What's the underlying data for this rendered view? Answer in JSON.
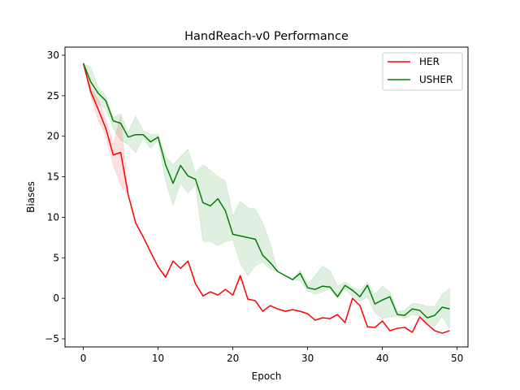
{
  "chart_data": {
    "type": "line",
    "title": "HandReach-v0 Performance",
    "xlabel": "Epoch",
    "ylabel": "Biases",
    "xlim": [
      -2.45,
      51.45
    ],
    "ylim": [
      -6,
      31
    ],
    "xticks": [
      0,
      10,
      20,
      30,
      40,
      50
    ],
    "yticks": [
      -5,
      0,
      5,
      10,
      15,
      20,
      25,
      30
    ],
    "grid": false,
    "legend_position": "top-right",
    "series": [
      {
        "name": "HER",
        "color": "#ff0000",
        "x": [
          0,
          1,
          2,
          3,
          4,
          5,
          6,
          7,
          8,
          9,
          10,
          11,
          12,
          13,
          14,
          15,
          16,
          17,
          18,
          19,
          20,
          21,
          22,
          23,
          24,
          25,
          26,
          27,
          28,
          29,
          30,
          31,
          32,
          33,
          34,
          35,
          36,
          37,
          38,
          39,
          40,
          41,
          42,
          43,
          44,
          45,
          46,
          47,
          48,
          49
        ],
        "values": [
          29.0,
          25.5,
          23.3,
          21.0,
          17.7,
          18.0,
          12.8,
          9.3,
          7.6,
          5.7,
          3.9,
          2.6,
          4.6,
          3.7,
          4.6,
          1.8,
          0.3,
          0.8,
          0.4,
          1.1,
          0.4,
          2.8,
          -0.1,
          -0.3,
          -1.6,
          -0.9,
          -1.3,
          -1.6,
          -1.4,
          -1.6,
          -1.9,
          -2.7,
          -2.4,
          -2.5,
          -2.0,
          -3.0,
          0.0,
          -0.9,
          -3.5,
          -3.6,
          -2.8,
          -4.0,
          -3.7,
          -3.6,
          -4.2,
          -2.3,
          -3.2,
          -4.0,
          -4.3,
          -4.0
        ],
        "lower": [
          29.0,
          25.0,
          22.0,
          20.0,
          16.5,
          14.0,
          12.8,
          9.3,
          7.6,
          5.7,
          3.9,
          2.6,
          4.6,
          3.7,
          4.6,
          1.8,
          0.3,
          0.8,
          0.4,
          1.1,
          0.4,
          2.8,
          -0.1,
          -0.3,
          -1.6,
          -0.9,
          -1.3,
          -1.6,
          -1.4,
          -1.6,
          -1.9,
          -2.7,
          -2.4,
          -2.5,
          -2.0,
          -3.0,
          0.0,
          -0.9,
          -3.5,
          -3.6,
          -2.8,
          -4.0,
          -3.7,
          -3.6,
          -4.2,
          -2.3,
          -3.2,
          -4.0,
          -4.3,
          -4.0
        ],
        "upper": [
          29.0,
          26.0,
          24.5,
          22.0,
          19.0,
          22.5,
          12.8,
          9.3,
          7.6,
          5.7,
          3.9,
          2.6,
          4.6,
          3.7,
          4.6,
          1.8,
          0.3,
          0.8,
          0.4,
          1.1,
          0.4,
          2.8,
          -0.1,
          -0.3,
          -1.6,
          -0.9,
          -1.3,
          -1.6,
          -1.4,
          -1.6,
          -1.9,
          -2.7,
          -2.4,
          -2.5,
          -2.0,
          -3.0,
          0.0,
          -0.9,
          -3.5,
          -3.6,
          -2.8,
          -4.0,
          -3.7,
          -3.6,
          -4.2,
          -2.3,
          -3.2,
          -4.0,
          -4.3,
          -4.0
        ]
      },
      {
        "name": "USHER",
        "color": "#008000",
        "x": [
          0,
          1,
          2,
          3,
          4,
          5,
          6,
          7,
          8,
          9,
          10,
          11,
          12,
          13,
          14,
          15,
          16,
          17,
          18,
          19,
          20,
          21,
          22,
          23,
          24,
          25,
          26,
          27,
          28,
          29,
          30,
          31,
          32,
          33,
          34,
          35,
          36,
          37,
          38,
          39,
          40,
          41,
          42,
          43,
          44,
          45,
          46,
          47,
          48,
          49
        ],
        "values": [
          29.0,
          26.7,
          25.3,
          24.4,
          21.9,
          21.6,
          19.9,
          20.2,
          20.2,
          19.3,
          19.9,
          16.5,
          14.2,
          16.4,
          15.1,
          14.7,
          11.8,
          11.4,
          12.3,
          10.8,
          7.9,
          7.7,
          7.5,
          7.3,
          5.3,
          4.4,
          3.3,
          2.8,
          2.3,
          3.1,
          1.3,
          1.1,
          1.5,
          1.4,
          0.2,
          1.6,
          1.0,
          0.2,
          1.6,
          -0.7,
          -0.2,
          0.2,
          -2.0,
          -2.1,
          -1.3,
          -1.5,
          -2.4,
          -2.1,
          -1.1,
          -1.3
        ],
        "lower": [
          29.0,
          25.0,
          24.0,
          23.5,
          21.0,
          19.5,
          19.0,
          18.0,
          19.8,
          18.5,
          19.5,
          14.5,
          11.5,
          14.2,
          13.0,
          14.0,
          7.0,
          7.0,
          6.5,
          7.0,
          7.2,
          4.3,
          2.8,
          4.0,
          4.5,
          3.6,
          3.3,
          2.8,
          2.3,
          2.2,
          0.9,
          0.5,
          0.8,
          1.2,
          0.0,
          1.2,
          0.2,
          -0.4,
          0.2,
          -1.8,
          -2.5,
          -2.3,
          -2.2,
          -2.5,
          -2.0,
          -2.2,
          -3.0,
          -3.5,
          -2.2,
          -3.8
        ],
        "upper": [
          29.0,
          28.5,
          26.0,
          25.0,
          22.3,
          22.8,
          20.5,
          22.5,
          20.7,
          20.2,
          20.2,
          17.5,
          16.5,
          17.5,
          18.4,
          15.5,
          16.5,
          15.8,
          15.0,
          14.5,
          10.2,
          12.0,
          11.2,
          11.0,
          9.3,
          6.8,
          3.3,
          2.8,
          2.3,
          3.5,
          1.8,
          2.8,
          4.0,
          3.4,
          1.5,
          2.0,
          1.4,
          1.0,
          2.0,
          0.5,
          1.5,
          0.8,
          -1.6,
          -1.5,
          -0.6,
          -0.7,
          -1.0,
          -1.0,
          0.5,
          1.2
        ]
      }
    ]
  }
}
